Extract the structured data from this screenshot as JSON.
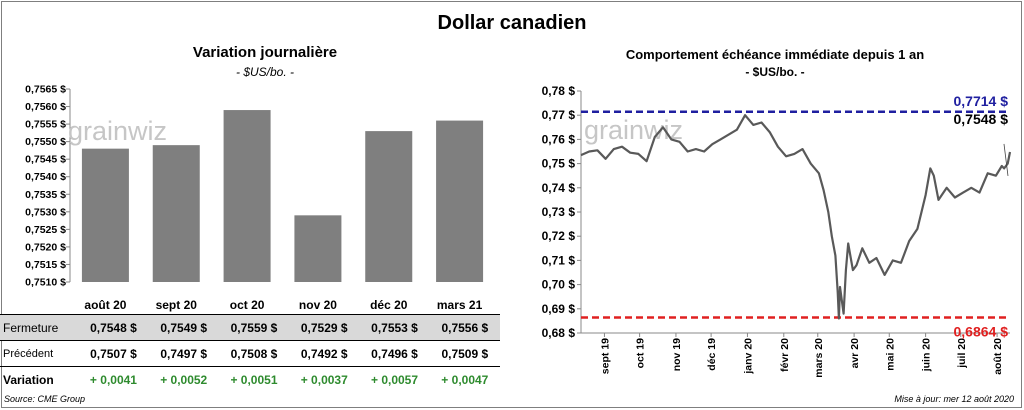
{
  "title": "Dollar canadien",
  "source": "Source: CME Group",
  "updated": "Mise à jour: mer 12 août 2020",
  "watermark": "grainwiz",
  "colors": {
    "bar": "#7f7f7f",
    "line": "#595959",
    "high": "#1f1fa0",
    "low": "#e02020",
    "positive": "#2e8b2e"
  },
  "table": {
    "rows": [
      {
        "label": "Fermeture",
        "values": [
          "0,7548 $",
          "0,7549 $",
          "0,7559 $",
          "0,7529 $",
          "0,7553 $",
          "0,7556 $"
        ]
      },
      {
        "label": "Précédent",
        "values": [
          "0,7507 $",
          "0,7497 $",
          "0,7508 $",
          "0,7492 $",
          "0,7496 $",
          "0,7509 $"
        ]
      },
      {
        "label": "Variation",
        "values": [
          "+ 0,0041",
          "+ 0,0052",
          "+ 0,0051",
          "+ 0,0037",
          "+ 0,0057",
          "+ 0,0047"
        ]
      }
    ]
  },
  "chart_data": [
    {
      "type": "bar",
      "title": "Variation  journalière",
      "subtitle": "- $US/bo. -",
      "categories": [
        "août 20",
        "sept 20",
        "oct 20",
        "nov 20",
        "déc 20",
        "mars 21"
      ],
      "values": [
        0.7548,
        0.7549,
        0.7559,
        0.7529,
        0.7553,
        0.7556
      ],
      "ylim": [
        0.751,
        0.7565
      ],
      "yticks": [
        "0,7510 $",
        "0,7515 $",
        "0,7520 $",
        "0,7525 $",
        "0,7530 $",
        "0,7535 $",
        "0,7540 $",
        "0,7545 $",
        "0,7550 $",
        "0,7555 $",
        "0,7560 $",
        "0,7565 $"
      ],
      "grid": false,
      "legend": "none"
    },
    {
      "type": "line",
      "title": "Comportement échéance immédiate depuis 1 an",
      "subtitle": "- $US/bo. -",
      "ylim": [
        0.68,
        0.78
      ],
      "yticks": [
        "0,68 $",
        "0,69 $",
        "0,70 $",
        "0,71 $",
        "0,72 $",
        "0,73 $",
        "0,74 $",
        "0,75 $",
        "0,76 $",
        "0,77 $",
        "0,78 $"
      ],
      "xticks": [
        "sept 19",
        "oct 19",
        "nov 19",
        "déc 19",
        "janv 20",
        "févr 20",
        "mars 20",
        "avr 20",
        "mai 20",
        "juin 20",
        "juil 20",
        "août 20"
      ],
      "x": [
        "2019-08-12",
        "2019-08-19",
        "2019-08-26",
        "2019-09-02",
        "2019-09-09",
        "2019-09-16",
        "2019-09-23",
        "2019-09-30",
        "2019-10-07",
        "2019-10-14",
        "2019-10-21",
        "2019-10-28",
        "2019-11-04",
        "2019-11-11",
        "2019-11-18",
        "2019-11-25",
        "2019-12-02",
        "2019-12-09",
        "2019-12-16",
        "2019-12-23",
        "2019-12-30",
        "2020-01-06",
        "2020-01-13",
        "2020-01-20",
        "2020-01-27",
        "2020-02-03",
        "2020-02-10",
        "2020-02-17",
        "2020-02-24",
        "2020-03-02",
        "2020-03-06",
        "2020-03-10",
        "2020-03-13",
        "2020-03-16",
        "2020-03-18",
        "2020-03-19",
        "2020-03-20",
        "2020-03-23",
        "2020-03-25",
        "2020-03-27",
        "2020-03-31",
        "2020-04-03",
        "2020-04-08",
        "2020-04-14",
        "2020-04-20",
        "2020-04-27",
        "2020-05-04",
        "2020-05-11",
        "2020-05-18",
        "2020-05-25",
        "2020-06-01",
        "2020-06-05",
        "2020-06-08",
        "2020-06-12",
        "2020-06-19",
        "2020-06-26",
        "2020-07-03",
        "2020-07-10",
        "2020-07-17",
        "2020-07-24",
        "2020-07-31",
        "2020-08-05",
        "2020-08-07",
        "2020-08-10",
        "2020-08-12"
      ],
      "y": [
        0.7535,
        0.755,
        0.7555,
        0.752,
        0.756,
        0.757,
        0.7545,
        0.754,
        0.751,
        0.761,
        0.765,
        0.76,
        0.759,
        0.755,
        0.756,
        0.755,
        0.758,
        0.76,
        0.762,
        0.764,
        0.77,
        0.766,
        0.767,
        0.763,
        0.757,
        0.753,
        0.754,
        0.756,
        0.75,
        0.746,
        0.739,
        0.73,
        0.72,
        0.712,
        0.697,
        0.686,
        0.699,
        0.688,
        0.706,
        0.717,
        0.706,
        0.708,
        0.715,
        0.709,
        0.711,
        0.704,
        0.71,
        0.709,
        0.718,
        0.723,
        0.737,
        0.748,
        0.745,
        0.735,
        0.74,
        0.736,
        0.738,
        0.74,
        0.738,
        0.746,
        0.745,
        0.749,
        0.748,
        0.75,
        0.7548
      ],
      "annotations": [
        {
          "label": "0,7714 $",
          "value": 0.7714,
          "kind": "high"
        },
        {
          "label": "0,7548 $",
          "value": 0.7548,
          "kind": "last"
        },
        {
          "label": "0,6864 $",
          "value": 0.6864,
          "kind": "low"
        }
      ],
      "grid": false,
      "legend": "none"
    }
  ]
}
